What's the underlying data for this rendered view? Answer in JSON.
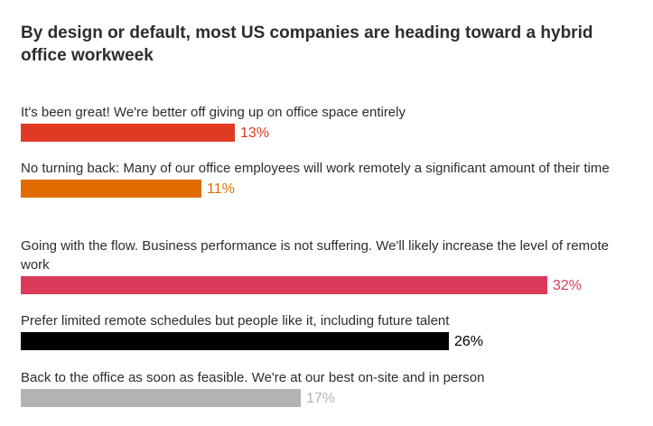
{
  "chart_data": {
    "type": "bar",
    "orientation": "horizontal",
    "title": "By design or default, most US companies are heading toward a hybrid office workweek",
    "categories": [
      "It's been great! We're better off giving up on office space entirely",
      "No turning back: Many of our office employees will work remotely a significant amount of their time",
      "Going with the flow. Business performance is not suffering. We'll likely increase the level of remote work",
      "Prefer limited remote schedules but people like it, including future talent",
      "Back to the office as soon as feasible. We're at our best on-site and in person"
    ],
    "values": [
      13,
      11,
      32,
      26,
      17
    ],
    "value_labels": [
      "13%",
      "11%",
      "32%",
      "26%",
      "17%"
    ],
    "unit": "%",
    "colors": [
      "#e03a24",
      "#e06c00",
      "#db3a5b",
      "#000000",
      "#b3b3b3"
    ],
    "label_colors": [
      "#e03a24",
      "#e06c00",
      "#db3a5b",
      "#000000",
      "#b3b3b3"
    ],
    "xlim": [
      0,
      32
    ],
    "grid": false,
    "legend": "none"
  }
}
